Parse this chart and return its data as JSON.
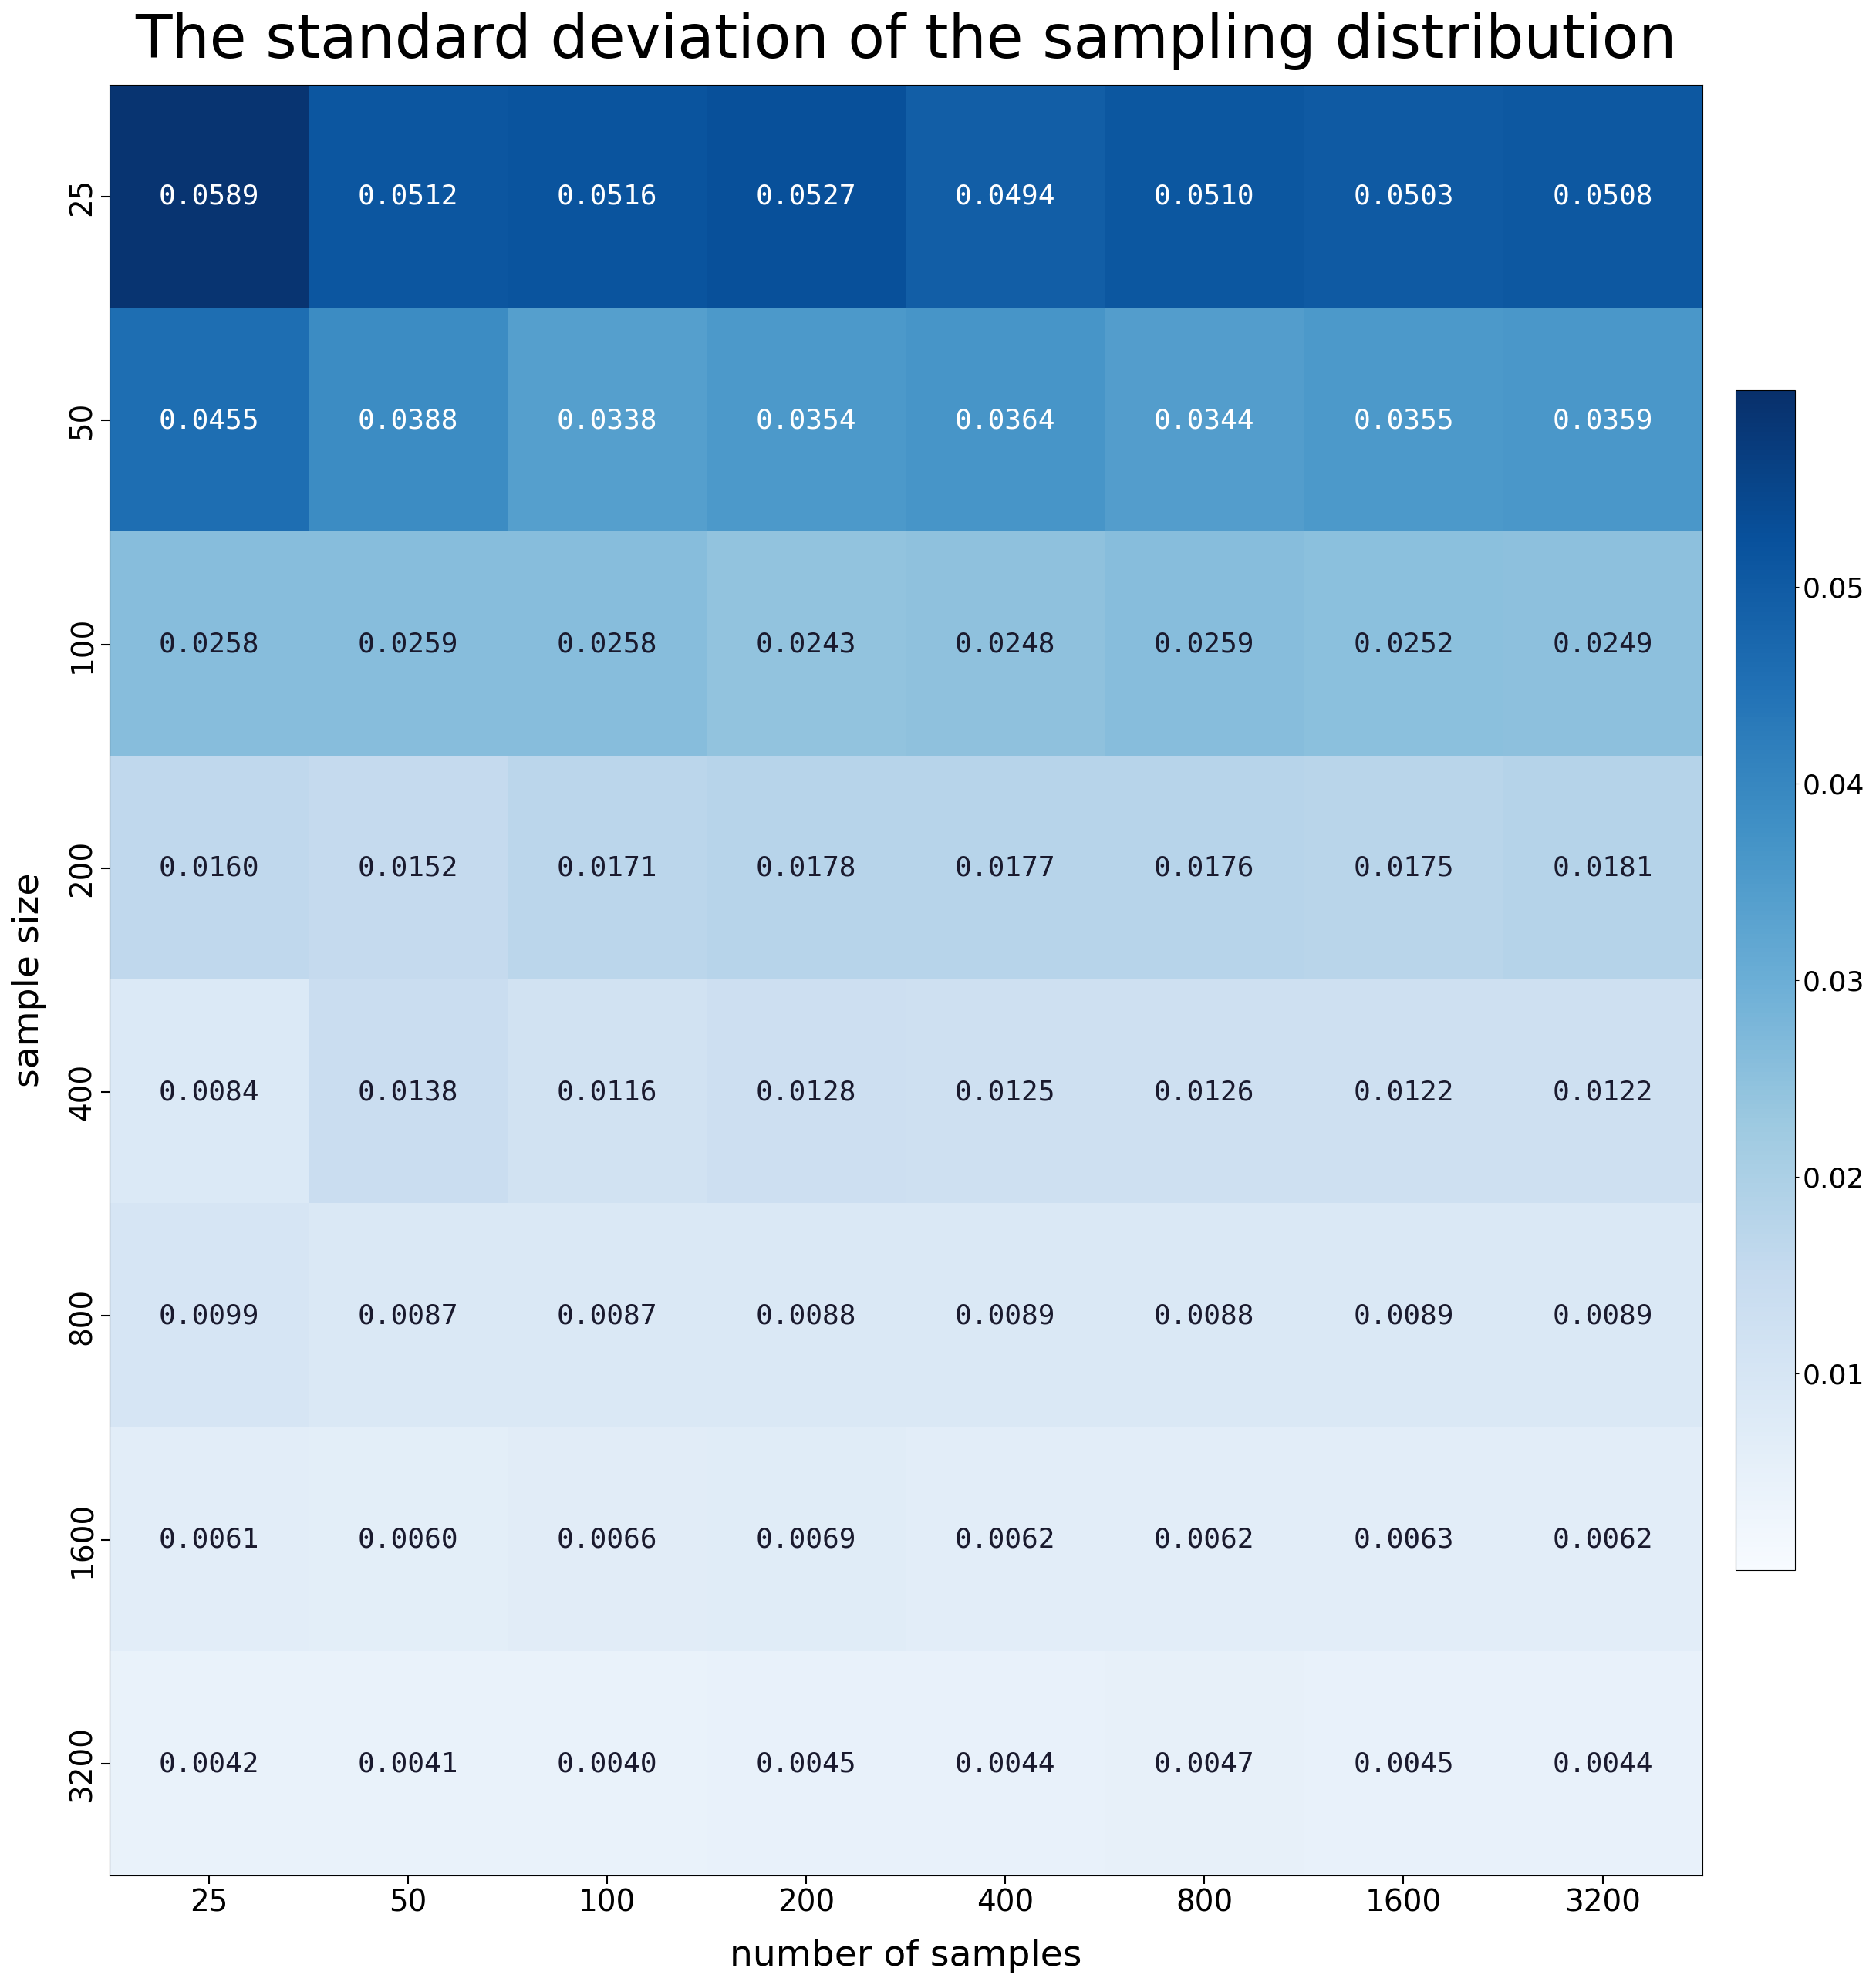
{
  "title": "The standard deviation of the sampling distribution",
  "xlabel": "number of samples",
  "ylabel": "sample size",
  "row_labels": [
    "25",
    "50",
    "100",
    "200",
    "400",
    "800",
    "1600",
    "3200"
  ],
  "col_labels": [
    "25",
    "50",
    "100",
    "200",
    "400",
    "800",
    "1600",
    "3200"
  ],
  "values": [
    [
      0.0589,
      0.0512,
      0.0516,
      0.0527,
      0.0494,
      0.051,
      0.0503,
      0.0508
    ],
    [
      0.0455,
      0.0388,
      0.0338,
      0.0354,
      0.0364,
      0.0344,
      0.0355,
      0.0359
    ],
    [
      0.0258,
      0.0259,
      0.0258,
      0.0243,
      0.0248,
      0.0259,
      0.0252,
      0.0249
    ],
    [
      0.016,
      0.0152,
      0.0171,
      0.0178,
      0.0177,
      0.0176,
      0.0175,
      0.0181
    ],
    [
      0.0084,
      0.0138,
      0.0116,
      0.0128,
      0.0125,
      0.0126,
      0.0122,
      0.0122
    ],
    [
      0.0099,
      0.0087,
      0.0087,
      0.0088,
      0.0089,
      0.0088,
      0.0089,
      0.0089
    ],
    [
      0.0061,
      0.006,
      0.0066,
      0.0069,
      0.0062,
      0.0062,
      0.0063,
      0.0062
    ],
    [
      0.0042,
      0.0041,
      0.004,
      0.0045,
      0.0044,
      0.0047,
      0.0045,
      0.0044
    ]
  ],
  "cmap": "Blues",
  "vmin": 0.0,
  "vmax": 0.06,
  "white_text_threshold": 0.5,
  "title_fontsize": 56,
  "label_fontsize": 34,
  "tick_fontsize": 28,
  "cell_fontsize": 26,
  "colorbar_tick_fontsize": 26,
  "colorbar_ticks": [
    0.01,
    0.02,
    0.03,
    0.04,
    0.05
  ]
}
